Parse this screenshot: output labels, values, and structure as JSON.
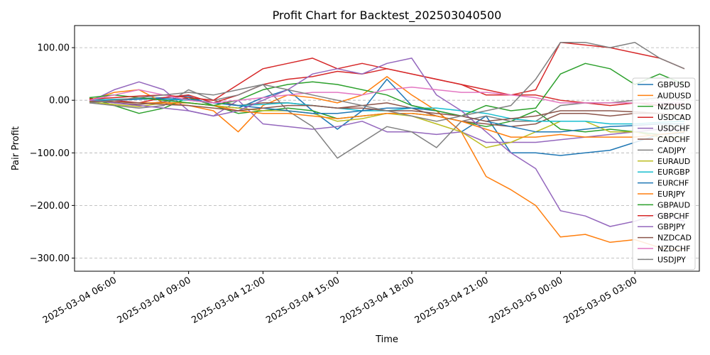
{
  "chart_data": {
    "type": "line",
    "title": "Profit Chart for Backtest_202503040500",
    "xlabel": "Time",
    "ylabel": "Pair Profit",
    "x_range": [
      "2025-03-04 04:24",
      "2025-03-05 05:36"
    ],
    "ylim": [
      -325,
      142
    ],
    "x_ticks": [
      {
        "label": "2025-03-04 06:00",
        "time": "2025-03-04 06:00"
      },
      {
        "label": "2025-03-04 09:00",
        "time": "2025-03-04 09:00"
      },
      {
        "label": "2025-03-04 12:00",
        "time": "2025-03-04 12:00"
      },
      {
        "label": "2025-03-04 15:00",
        "time": "2025-03-04 15:00"
      },
      {
        "label": "2025-03-04 18:00",
        "time": "2025-03-04 18:00"
      },
      {
        "label": "2025-03-04 21:00",
        "time": "2025-03-04 21:00"
      },
      {
        "label": "2025-03-05 00:00",
        "time": "2025-03-05 00:00"
      },
      {
        "label": "2025-03-05 03:00",
        "time": "2025-03-05 03:00"
      }
    ],
    "y_ticks": [
      {
        "label": "100.00",
        "value": 100
      },
      {
        "label": "0.00",
        "value": 0
      },
      {
        "label": "−100.00",
        "value": -100
      },
      {
        "label": "−200.00",
        "value": -200
      },
      {
        "label": "−300.00",
        "value": -300
      }
    ],
    "grid": true,
    "legend_position": "right",
    "x": [
      "2025-03-04 05:00",
      "2025-03-04 06:00",
      "2025-03-04 07:00",
      "2025-03-04 08:00",
      "2025-03-04 09:00",
      "2025-03-04 10:00",
      "2025-03-04 11:00",
      "2025-03-04 12:00",
      "2025-03-04 13:00",
      "2025-03-04 14:00",
      "2025-03-04 15:00",
      "2025-03-04 16:00",
      "2025-03-04 17:00",
      "2025-03-04 18:00",
      "2025-03-04 19:00",
      "2025-03-04 20:00",
      "2025-03-04 21:00",
      "2025-03-04 22:00",
      "2025-03-04 23:00",
      "2025-03-05 00:00",
      "2025-03-05 01:00",
      "2025-03-05 02:00",
      "2025-03-05 03:00",
      "2025-03-05 04:00",
      "2025-03-05 05:00"
    ],
    "series": [
      {
        "name": "GBPUSD",
        "color": "#1f77b4",
        "values": [
          2,
          0,
          3,
          5,
          8,
          -10,
          -15,
          5,
          20,
          -20,
          -55,
          -20,
          40,
          -10,
          -20,
          -60,
          -30,
          -100,
          -100,
          -105,
          -100,
          -95,
          -80,
          -65,
          -62
        ]
      },
      {
        "name": "AUDUSD",
        "color": "#ff7f0e",
        "values": [
          0,
          15,
          20,
          -5,
          -10,
          -20,
          -60,
          -10,
          10,
          5,
          -5,
          10,
          45,
          10,
          -20,
          -60,
          -145,
          -170,
          -200,
          -260,
          -255,
          -270,
          -265,
          -280,
          -285
        ]
      },
      {
        "name": "NZDUSD",
        "color": "#2ca02c",
        "values": [
          5,
          -10,
          -25,
          -15,
          5,
          -10,
          -25,
          -20,
          -15,
          -20,
          -35,
          -30,
          -25,
          -25,
          -30,
          -40,
          -50,
          -40,
          -20,
          -55,
          -60,
          -55,
          -60,
          -65,
          -60
        ]
      },
      {
        "name": "USDCAD",
        "color": "#d62728",
        "values": [
          3,
          0,
          -5,
          5,
          10,
          -5,
          10,
          30,
          40,
          45,
          55,
          50,
          60,
          50,
          40,
          30,
          10,
          10,
          10,
          0,
          -5,
          -10,
          -5,
          -10,
          -8
        ]
      },
      {
        "name": "USDCHF",
        "color": "#9467bd",
        "values": [
          -3,
          20,
          35,
          20,
          -20,
          -30,
          0,
          -45,
          -50,
          -55,
          -50,
          -40,
          -60,
          -60,
          -65,
          -60,
          -80,
          -80,
          -80,
          -75,
          -70,
          -65,
          -60,
          -55,
          -55
        ]
      },
      {
        "name": "CADCHF",
        "color": "#8c564b",
        "values": [
          0,
          -5,
          -8,
          -3,
          5,
          0,
          -10,
          -5,
          -5,
          -10,
          -15,
          -10,
          -5,
          -15,
          -30,
          -40,
          -45,
          -50,
          -45,
          -25,
          -25,
          -30,
          -25,
          -25,
          -30
        ]
      },
      {
        "name": "CADJPY",
        "color": "#7f7f7f",
        "values": [
          -5,
          -10,
          -15,
          -10,
          20,
          0,
          10,
          30,
          -20,
          -50,
          -110,
          -80,
          -50,
          -60,
          -90,
          -40,
          -30,
          -40,
          -40,
          -10,
          -5,
          -5,
          0,
          5,
          0
        ]
      },
      {
        "name": "EURAUD",
        "color": "#bcbd22",
        "values": [
          -3,
          -8,
          -12,
          -5,
          -5,
          -10,
          -15,
          -20,
          -20,
          -25,
          -40,
          -35,
          -25,
          -30,
          -45,
          -60,
          -90,
          -80,
          -60,
          -40,
          -40,
          -60,
          -60,
          -70,
          -70
        ]
      },
      {
        "name": "EURGBP",
        "color": "#17becf",
        "values": [
          0,
          2,
          3,
          2,
          0,
          -5,
          -10,
          -8,
          -5,
          -10,
          -15,
          -20,
          -20,
          -15,
          -15,
          -20,
          -25,
          -35,
          -40,
          -40,
          -40,
          -45,
          -45,
          -42,
          -40
        ]
      },
      {
        "name": "EURCHF",
        "color": "#1f77b4",
        "values": [
          -2,
          0,
          2,
          3,
          2,
          -5,
          -10,
          -15,
          -20,
          -25,
          -25,
          -20,
          -15,
          -15,
          -20,
          -30,
          -40,
          -50,
          -60,
          -60,
          -55,
          -50,
          -48,
          -45,
          -45
        ]
      },
      {
        "name": "EURJPY",
        "color": "#ff7f0e",
        "values": [
          -1,
          -3,
          -5,
          -5,
          -5,
          -10,
          -20,
          -25,
          -25,
          -30,
          -35,
          -30,
          -25,
          -25,
          -30,
          -40,
          -55,
          -70,
          -70,
          -65,
          -70,
          -70,
          -70,
          -65,
          -60
        ]
      },
      {
        "name": "GBPAUD",
        "color": "#2ca02c",
        "values": [
          5,
          10,
          5,
          0,
          -5,
          -10,
          0,
          20,
          30,
          35,
          30,
          20,
          10,
          -10,
          -20,
          -30,
          -10,
          -20,
          -15,
          50,
          70,
          60,
          30,
          50,
          30
        ]
      },
      {
        "name": "GBPCHF",
        "color": "#d62728",
        "values": [
          2,
          5,
          8,
          10,
          5,
          0,
          30,
          60,
          70,
          80,
          60,
          70,
          60,
          50,
          40,
          30,
          20,
          10,
          20,
          110,
          105,
          100,
          90,
          80,
          60
        ]
      },
      {
        "name": "GBPJPY",
        "color": "#9467bd",
        "values": [
          0,
          -5,
          -10,
          -15,
          -20,
          -30,
          -20,
          0,
          20,
          50,
          60,
          50,
          70,
          80,
          10,
          -20,
          -60,
          -100,
          -130,
          -210,
          -220,
          -240,
          -230,
          -215,
          -230
        ]
      },
      {
        "name": "NZDCAD",
        "color": "#8c564b",
        "values": [
          -2,
          -3,
          -5,
          -8,
          -10,
          -15,
          -20,
          -15,
          -10,
          -10,
          -15,
          -15,
          -20,
          -20,
          -25,
          -30,
          -40,
          -35,
          -30,
          -20,
          -20,
          -20,
          -22,
          -25,
          -28
        ]
      },
      {
        "name": "NZDCHF",
        "color": "#e377c2",
        "values": [
          0,
          10,
          20,
          10,
          0,
          -5,
          0,
          5,
          10,
          15,
          15,
          10,
          20,
          25,
          20,
          15,
          15,
          10,
          5,
          -5,
          -5,
          -5,
          -5,
          -5,
          -5
        ]
      },
      {
        "name": "USDJPY",
        "color": "#7f7f7f",
        "values": [
          -5,
          0,
          5,
          10,
          15,
          10,
          20,
          30,
          20,
          10,
          0,
          -10,
          -20,
          -30,
          -40,
          -30,
          -20,
          -10,
          40,
          110,
          110,
          100,
          110,
          80,
          60
        ]
      }
    ]
  }
}
